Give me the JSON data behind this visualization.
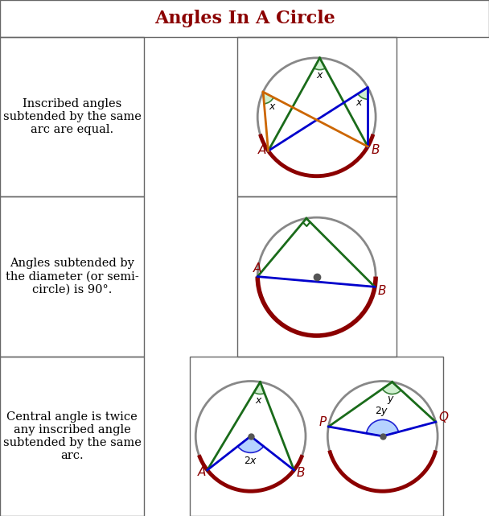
{
  "title": "Angles In A Circle",
  "title_color": "#8B0000",
  "bg_color": "#FFFFFF",
  "border_color": "#666666",
  "row_texts": [
    "Inscribed angles\nsubtended by the same\narc are equal.",
    "Angles subtended by\nthe diameter (or semi-\ncircle) is 90°.",
    "Central angle is twice\nany inscribed angle\nsubtended by the same\narc."
  ],
  "dark_red": "#8B0000",
  "dark_green": "#1a6b1a",
  "green_fill": "#c8eec8",
  "blue_fill": "#aaccff",
  "orange": "#cc6600",
  "blue": "#0000cc",
  "gray_circle": "#888888",
  "dot_color": "#555555",
  "title_fontsize": 16,
  "text_fontsize": 10.5,
  "label_fontsize": 11
}
